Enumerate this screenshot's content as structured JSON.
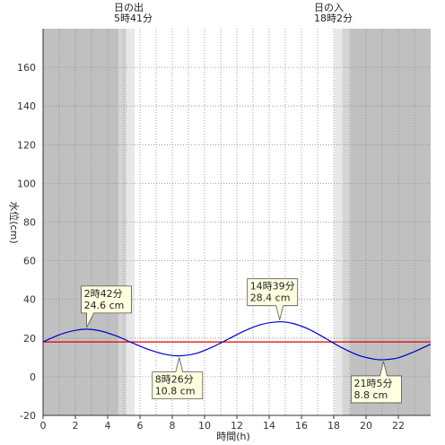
{
  "chart_data": {
    "type": "line",
    "xlabel": "時間(h)",
    "ylabel": "水位(cm)",
    "xlim": [
      0,
      24
    ],
    "ylim": [
      -20,
      180
    ],
    "x_ticks": [
      0,
      2,
      4,
      6,
      8,
      10,
      12,
      14,
      16,
      18,
      20,
      22
    ],
    "y_ticks": [
      -20,
      0,
      20,
      40,
      60,
      80,
      100,
      120,
      140,
      160
    ],
    "grid": true,
    "reference_level": 18,
    "sunrise": {
      "title": "日の出",
      "time": "5時41分",
      "hour": 5.683
    },
    "sunset": {
      "title": "日の入",
      "time": "18時2分",
      "hour": 18.033
    },
    "extrema": [
      {
        "time": "2時42分",
        "hour": 2.7,
        "value": 24.6,
        "label": "24.6 cm",
        "type": "high"
      },
      {
        "time": "8時26分",
        "hour": 8.433,
        "value": 10.8,
        "label": "10.8 cm",
        "type": "low"
      },
      {
        "time": "14時39分",
        "hour": 14.65,
        "value": 28.4,
        "label": "28.4 cm",
        "type": "high"
      },
      {
        "time": "21時5分",
        "hour": 21.083,
        "value": 8.8,
        "label": "8.8 cm",
        "type": "low"
      }
    ],
    "series": [
      {
        "color": "#0000cc",
        "x": [
          0,
          1,
          2,
          2.7,
          3.5,
          4.5,
          5.5,
          6.5,
          7.5,
          8.433,
          9.5,
          10.5,
          11.5,
          12.5,
          13.5,
          14.65,
          15.5,
          16.5,
          17.5,
          18.5,
          19.5,
          20.5,
          21.083,
          22,
          23,
          24
        ],
        "values": [
          18,
          21.7,
          24.0,
          24.6,
          23.8,
          21.2,
          17.6,
          14.2,
          11.7,
          10.8,
          12.1,
          15.4,
          19.6,
          23.8,
          27.0,
          28.4,
          27.5,
          24.4,
          19.8,
          15.0,
          11.2,
          9.1,
          8.8,
          9.8,
          13.0,
          16.8
        ]
      }
    ],
    "colors": {
      "night": "#c0c0c0",
      "twilight_dark": "#d4d4d4",
      "twilight_light": "#e8e8e8",
      "day": "#ffffff",
      "line": "#0000cc",
      "reference": "#dd0000",
      "callout_fill": "#ffffe0"
    }
  }
}
